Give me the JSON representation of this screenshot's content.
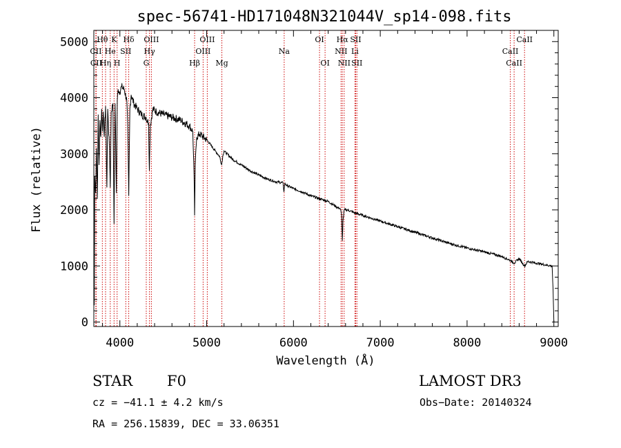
{
  "chart_data": {
    "type": "line",
    "title": "spec-56741-HD171048N321044V_sp14-098.fits",
    "xlabel": "Wavelength (Å)",
    "ylabel": "Flux (relative)",
    "xlim": [
      3700,
      9050
    ],
    "ylim": [
      -80,
      5200
    ],
    "xticks": [
      4000,
      5000,
      6000,
      7000,
      8000,
      9000
    ],
    "yticks": [
      0,
      1000,
      2000,
      3000,
      4000,
      5000
    ],
    "grid": false,
    "series": [
      {
        "name": "flux",
        "x": [
          3700,
          3705,
          3710,
          3720,
          3730,
          3740,
          3750,
          3760,
          3770,
          3780,
          3790,
          3800,
          3810,
          3820,
          3835,
          3850,
          3860,
          3880,
          3889,
          3900,
          3920,
          3933,
          3945,
          3960,
          3970,
          3980,
          4000,
          4020,
          4050,
          4080,
          4090,
          4102,
          4115,
          4130,
          4160,
          4200,
          4250,
          4300,
          4330,
          4340,
          4350,
          4380,
          4420,
          4500,
          4600,
          4700,
          4800,
          4840,
          4855,
          4861,
          4868,
          4885,
          4920,
          5000,
          5050,
          5100,
          5150,
          5172,
          5185,
          5200,
          5300,
          5400,
          5500,
          5600,
          5700,
          5800,
          5880,
          5890,
          5900,
          5910,
          5930,
          6000,
          6100,
          6200,
          6300,
          6400,
          6450,
          6500,
          6540,
          6555,
          6563,
          6570,
          6585,
          6620,
          6700,
          6800,
          6900,
          7000,
          7200,
          7400,
          7600,
          7800,
          8000,
          8200,
          8400,
          8498,
          8542,
          8600,
          8662,
          8700,
          8800,
          8900,
          8980,
          8990,
          9000
        ],
        "y": [
          2800,
          300,
          2600,
          2300,
          3100,
          2200,
          3700,
          2800,
          3600,
          3300,
          3800,
          3400,
          3750,
          3300,
          3850,
          2400,
          3800,
          3100,
          2400,
          3750,
          3900,
          1750,
          3900,
          2300,
          3950,
          4150,
          4100,
          4200,
          4150,
          3950,
          3500,
          2250,
          3800,
          4050,
          3900,
          3800,
          3700,
          3650,
          3550,
          2700,
          3500,
          3800,
          3750,
          3700,
          3650,
          3600,
          3500,
          3400,
          2600,
          1900,
          2800,
          3300,
          3350,
          3250,
          3150,
          3050,
          2950,
          2800,
          2950,
          3050,
          2900,
          2800,
          2700,
          2620,
          2550,
          2500,
          2480,
          2320,
          2470,
          2450,
          2430,
          2380,
          2320,
          2250,
          2200,
          2150,
          2100,
          2050,
          2020,
          1900,
          1450,
          1800,
          2000,
          2000,
          1950,
          1900,
          1850,
          1800,
          1700,
          1600,
          1500,
          1400,
          1320,
          1250,
          1170,
          1100,
          1050,
          1130,
          1000,
          1080,
          1050,
          1020,
          1000,
          600,
          0
        ]
      }
    ],
    "spectral_lines": [
      {
        "label": "Hθ",
        "x": 3798,
        "row": 1
      },
      {
        "label": "CII",
        "x": 3723,
        "row": 2
      },
      {
        "label": "CII",
        "x": 3727,
        "row": 3
      },
      {
        "label": "Hη",
        "x": 3835,
        "row": 3
      },
      {
        "label": "K",
        "x": 3933,
        "row": 1
      },
      {
        "label": "He",
        "x": 3889,
        "row": 2
      },
      {
        "label": "H",
        "x": 3968,
        "row": 3
      },
      {
        "label": "SII",
        "x": 4068,
        "row": 2
      },
      {
        "label": "Hδ",
        "x": 4102,
        "row": 1
      },
      {
        "label": "OIII",
        "x": 4363,
        "row": 1
      },
      {
        "label": "Hγ",
        "x": 4341,
        "row": 2
      },
      {
        "label": "G",
        "x": 4304,
        "row": 3
      },
      {
        "label": "Hβ",
        "x": 4861,
        "row": 3
      },
      {
        "label": "OIII",
        "x": 5007,
        "row": 1
      },
      {
        "label": "OIII",
        "x": 4959,
        "row": 2
      },
      {
        "label": "Mg",
        "x": 5175,
        "row": 3
      },
      {
        "label": "Na",
        "x": 5893,
        "row": 2
      },
      {
        "label": "OI",
        "x": 6300,
        "row": 1
      },
      {
        "label": "OI",
        "x": 6364,
        "row": 3
      },
      {
        "label": "Hα",
        "x": 6563,
        "row": 1
      },
      {
        "label": "NII",
        "x": 6548,
        "row": 2
      },
      {
        "label": "NII",
        "x": 6584,
        "row": 3
      },
      {
        "label": "SII",
        "x": 6717,
        "row": 1
      },
      {
        "label": "Li",
        "x": 6708,
        "row": 2
      },
      {
        "label": "SII",
        "x": 6731,
        "row": 3
      },
      {
        "label": "CaII",
        "x": 8662,
        "row": 1
      },
      {
        "label": "CaII",
        "x": 8498,
        "row": 2
      },
      {
        "label": "CaII",
        "x": 8542,
        "row": 3
      }
    ]
  },
  "info": {
    "object_class": "STAR",
    "subclass": "F0",
    "survey": "LAMOST DR3",
    "cz": "cz = −41.1 ± 4.2 km/s",
    "obs_date": "Obs−Date: 20140324",
    "coords": "RA = 256.15839, DEC =  33.06351"
  },
  "colors": {
    "line_marker": "#cc0000",
    "spectrum": "#000000",
    "axes": "#000000"
  }
}
